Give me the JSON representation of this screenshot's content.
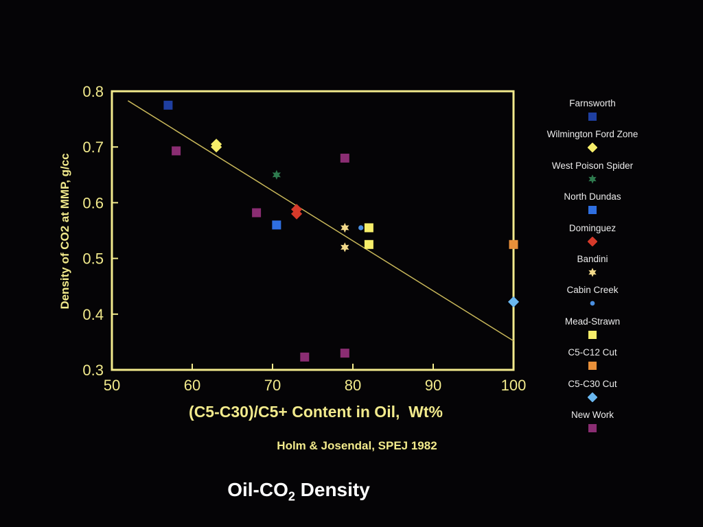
{
  "slide": {
    "title_prefix": "Oil-CO",
    "title_sub": "2",
    "title_suffix": " Density"
  },
  "colors": {
    "background": "#050406",
    "axis": "#f2ea8c",
    "trend_line": "#c9b85a",
    "text": "#ececec"
  },
  "chart_data": {
    "type": "scatter",
    "xlabel": "(C5-C30)/C5+ Content in Oil,  Wt%",
    "ylabel": "Density of CO2 at MMP, g/cc",
    "source": "Holm & Josendal, SPEJ 1982",
    "xlim": [
      50,
      100
    ],
    "ylim": [
      0.3,
      0.8
    ],
    "x_ticks": [
      50,
      60,
      70,
      80,
      90,
      100
    ],
    "y_ticks": [
      0.3,
      0.4,
      0.5,
      0.6,
      0.7,
      0.8
    ],
    "legend_position": "right",
    "grid": false,
    "trend_line": [
      [
        52,
        0.783
      ],
      [
        100,
        0.352
      ]
    ],
    "series": [
      {
        "name": "Farnsworth",
        "marker": "square",
        "color": "#1f3fa0",
        "points": [
          [
            57,
            0.775
          ]
        ]
      },
      {
        "name": "Wilmington Ford Zone",
        "marker": "diamond",
        "color": "#f6ee6a",
        "points": [
          [
            63,
            0.705
          ],
          [
            63,
            0.7
          ]
        ]
      },
      {
        "name": "West Poison Spider",
        "marker": "star",
        "color": "#2e7a4e",
        "points": [
          [
            70.5,
            0.65
          ]
        ]
      },
      {
        "name": "North Dundas",
        "marker": "square",
        "color": "#2f6fe0",
        "points": [
          [
            70.5,
            0.56
          ]
        ]
      },
      {
        "name": "Dominguez",
        "marker": "diamond",
        "color": "#d63a2a",
        "points": [
          [
            73,
            0.588
          ],
          [
            73,
            0.58
          ]
        ]
      },
      {
        "name": "Bandini",
        "marker": "star",
        "color": "#f2d98a",
        "points": [
          [
            79,
            0.555
          ],
          [
            79,
            0.52
          ]
        ]
      },
      {
        "name": "Cabin Creek",
        "marker": "dot",
        "color": "#4a8fe0",
        "points": [
          [
            81,
            0.555
          ]
        ]
      },
      {
        "name": "Mead-Strawn",
        "marker": "square",
        "color": "#f6ee6a",
        "points": [
          [
            82,
            0.555
          ],
          [
            82,
            0.525
          ]
        ]
      },
      {
        "name": "C5-C12 Cut",
        "marker": "square",
        "color": "#e8903a",
        "points": [
          [
            100,
            0.525
          ]
        ]
      },
      {
        "name": "C5-C30 Cut",
        "marker": "diamond",
        "color": "#6ab8f0",
        "points": [
          [
            100,
            0.422
          ]
        ]
      },
      {
        "name": "New Work",
        "marker": "square",
        "color": "#8a2d72",
        "points": [
          [
            58,
            0.693
          ],
          [
            68,
            0.582
          ],
          [
            74,
            0.323
          ],
          [
            79,
            0.68
          ],
          [
            79,
            0.33
          ]
        ]
      }
    ]
  }
}
